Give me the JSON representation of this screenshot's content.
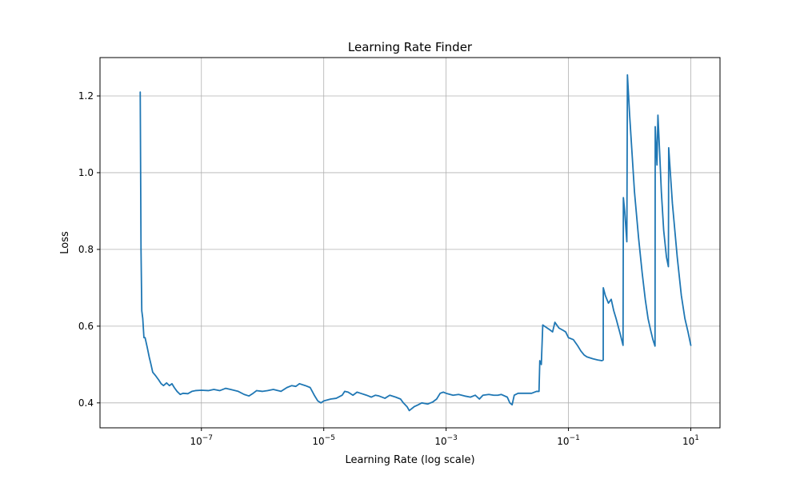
{
  "chart_data": {
    "type": "line",
    "title": "Learning Rate Finder",
    "xlabel": "Learning Rate (log scale)",
    "ylabel": "Loss",
    "x_scale": "log",
    "xlim": [
      2.2e-09,
      30
    ],
    "ylim": [
      0.335,
      1.3
    ],
    "grid": true,
    "x_ticks": [
      {
        "value": 1e-07,
        "base": "10",
        "exp": "−7"
      },
      {
        "value": 1e-05,
        "base": "10",
        "exp": "−5"
      },
      {
        "value": 0.001,
        "base": "10",
        "exp": "−3"
      },
      {
        "value": 0.1,
        "base": "10",
        "exp": "−1"
      },
      {
        "value": 10,
        "base": "10",
        "exp": "1"
      }
    ],
    "y_ticks": [
      {
        "value": 0.4,
        "label": "0.4"
      },
      {
        "value": 0.6,
        "label": "0.6"
      },
      {
        "value": 0.8,
        "label": "0.8"
      },
      {
        "value": 1.0,
        "label": "1.0"
      },
      {
        "value": 1.2,
        "label": "1.2"
      }
    ],
    "series": [
      {
        "color": "#1f77b4",
        "points": [
          [
            1e-08,
            1.21
          ],
          [
            1.03e-08,
            0.8
          ],
          [
            1.06e-08,
            0.64
          ],
          [
            1.1e-08,
            0.62
          ],
          [
            1.15e-08,
            0.57
          ],
          [
            1.2e-08,
            0.57
          ],
          [
            1.3e-08,
            0.545
          ],
          [
            1.4e-08,
            0.52
          ],
          [
            1.5e-08,
            0.5
          ],
          [
            1.6e-08,
            0.48
          ],
          [
            1.8e-08,
            0.47
          ],
          [
            2e-08,
            0.46
          ],
          [
            2.2e-08,
            0.45
          ],
          [
            2.4e-08,
            0.445
          ],
          [
            2.7e-08,
            0.452
          ],
          [
            3e-08,
            0.445
          ],
          [
            3.3e-08,
            0.45
          ],
          [
            3.6e-08,
            0.44
          ],
          [
            4e-08,
            0.43
          ],
          [
            4.5e-08,
            0.422
          ],
          [
            5e-08,
            0.425
          ],
          [
            6e-08,
            0.424
          ],
          [
            7e-08,
            0.43
          ],
          [
            8e-08,
            0.432
          ],
          [
            1e-07,
            0.433
          ],
          [
            1.3e-07,
            0.432
          ],
          [
            1.6e-07,
            0.435
          ],
          [
            2e-07,
            0.432
          ],
          [
            2.5e-07,
            0.438
          ],
          [
            3e-07,
            0.435
          ],
          [
            4e-07,
            0.43
          ],
          [
            5e-07,
            0.422
          ],
          [
            6e-07,
            0.418
          ],
          [
            7e-07,
            0.425
          ],
          [
            8e-07,
            0.432
          ],
          [
            1e-06,
            0.43
          ],
          [
            1.2e-06,
            0.432
          ],
          [
            1.5e-06,
            0.435
          ],
          [
            2e-06,
            0.43
          ],
          [
            2.5e-06,
            0.44
          ],
          [
            3e-06,
            0.445
          ],
          [
            3.5e-06,
            0.443
          ],
          [
            4e-06,
            0.45
          ],
          [
            5e-06,
            0.445
          ],
          [
            6e-06,
            0.44
          ],
          [
            7e-06,
            0.42
          ],
          [
            8e-06,
            0.405
          ],
          [
            9e-06,
            0.4
          ],
          [
            1e-05,
            0.405
          ],
          [
            1.3e-05,
            0.41
          ],
          [
            1.6e-05,
            0.412
          ],
          [
            2e-05,
            0.42
          ],
          [
            2.2e-05,
            0.43
          ],
          [
            2.5e-05,
            0.428
          ],
          [
            3e-05,
            0.42
          ],
          [
            3.5e-05,
            0.428
          ],
          [
            4e-05,
            0.425
          ],
          [
            5e-05,
            0.42
          ],
          [
            6e-05,
            0.415
          ],
          [
            7e-05,
            0.42
          ],
          [
            8e-05,
            0.418
          ],
          [
            0.0001,
            0.412
          ],
          [
            0.00012,
            0.42
          ],
          [
            0.00015,
            0.415
          ],
          [
            0.00018,
            0.41
          ],
          [
            0.0002,
            0.4
          ],
          [
            0.00023,
            0.39
          ],
          [
            0.00025,
            0.38
          ],
          [
            0.0003,
            0.39
          ],
          [
            0.00035,
            0.395
          ],
          [
            0.0004,
            0.4
          ],
          [
            0.0005,
            0.397
          ],
          [
            0.0006,
            0.402
          ],
          [
            0.0007,
            0.41
          ],
          [
            0.0008,
            0.425
          ],
          [
            0.0009,
            0.428
          ],
          [
            0.001,
            0.425
          ],
          [
            0.0013,
            0.42
          ],
          [
            0.0016,
            0.422
          ],
          [
            0.002,
            0.418
          ],
          [
            0.0025,
            0.415
          ],
          [
            0.003,
            0.42
          ],
          [
            0.0035,
            0.41
          ],
          [
            0.004,
            0.42
          ],
          [
            0.005,
            0.422
          ],
          [
            0.006,
            0.42
          ],
          [
            0.007,
            0.42
          ],
          [
            0.008,
            0.422
          ],
          [
            0.01,
            0.415
          ],
          [
            0.011,
            0.4
          ],
          [
            0.012,
            0.395
          ],
          [
            0.013,
            0.42
          ],
          [
            0.015,
            0.425
          ],
          [
            0.02,
            0.425
          ],
          [
            0.025,
            0.425
          ],
          [
            0.03,
            0.43
          ],
          [
            0.033,
            0.43
          ],
          [
            0.034,
            0.51
          ],
          [
            0.036,
            0.5
          ],
          [
            0.038,
            0.603
          ],
          [
            0.045,
            0.595
          ],
          [
            0.05,
            0.59
          ],
          [
            0.055,
            0.585
          ],
          [
            0.06,
            0.61
          ],
          [
            0.07,
            0.595
          ],
          [
            0.08,
            0.59
          ],
          [
            0.09,
            0.585
          ],
          [
            0.1,
            0.57
          ],
          [
            0.12,
            0.565
          ],
          [
            0.14,
            0.55
          ],
          [
            0.16,
            0.535
          ],
          [
            0.18,
            0.525
          ],
          [
            0.2,
            0.52
          ],
          [
            0.25,
            0.515
          ],
          [
            0.3,
            0.512
          ],
          [
            0.35,
            0.51
          ],
          [
            0.37,
            0.512
          ],
          [
            0.371,
            0.7
          ],
          [
            0.4,
            0.68
          ],
          [
            0.45,
            0.66
          ],
          [
            0.5,
            0.67
          ],
          [
            0.55,
            0.64
          ],
          [
            0.6,
            0.62
          ],
          [
            0.7,
            0.58
          ],
          [
            0.78,
            0.55
          ],
          [
            0.79,
            0.935
          ],
          [
            0.83,
            0.9
          ],
          [
            0.9,
            0.82
          ],
          [
            0.92,
            1.255
          ],
          [
            1.0,
            1.15
          ],
          [
            1.2,
            0.95
          ],
          [
            1.4,
            0.83
          ],
          [
            1.6,
            0.74
          ],
          [
            1.8,
            0.67
          ],
          [
            2.0,
            0.62
          ],
          [
            2.2,
            0.59
          ],
          [
            2.4,
            0.565
          ],
          [
            2.6,
            0.548
          ],
          [
            2.62,
            1.12
          ],
          [
            2.8,
            1.02
          ],
          [
            2.9,
            1.15
          ],
          [
            3.1,
            1.05
          ],
          [
            3.3,
            0.95
          ],
          [
            3.6,
            0.85
          ],
          [
            4.0,
            0.78
          ],
          [
            4.3,
            0.755
          ],
          [
            4.35,
            1.065
          ],
          [
            5.0,
            0.92
          ],
          [
            6.0,
            0.78
          ],
          [
            7.0,
            0.68
          ],
          [
            8.0,
            0.62
          ],
          [
            9.0,
            0.585
          ],
          [
            10.0,
            0.55
          ]
        ]
      }
    ]
  }
}
